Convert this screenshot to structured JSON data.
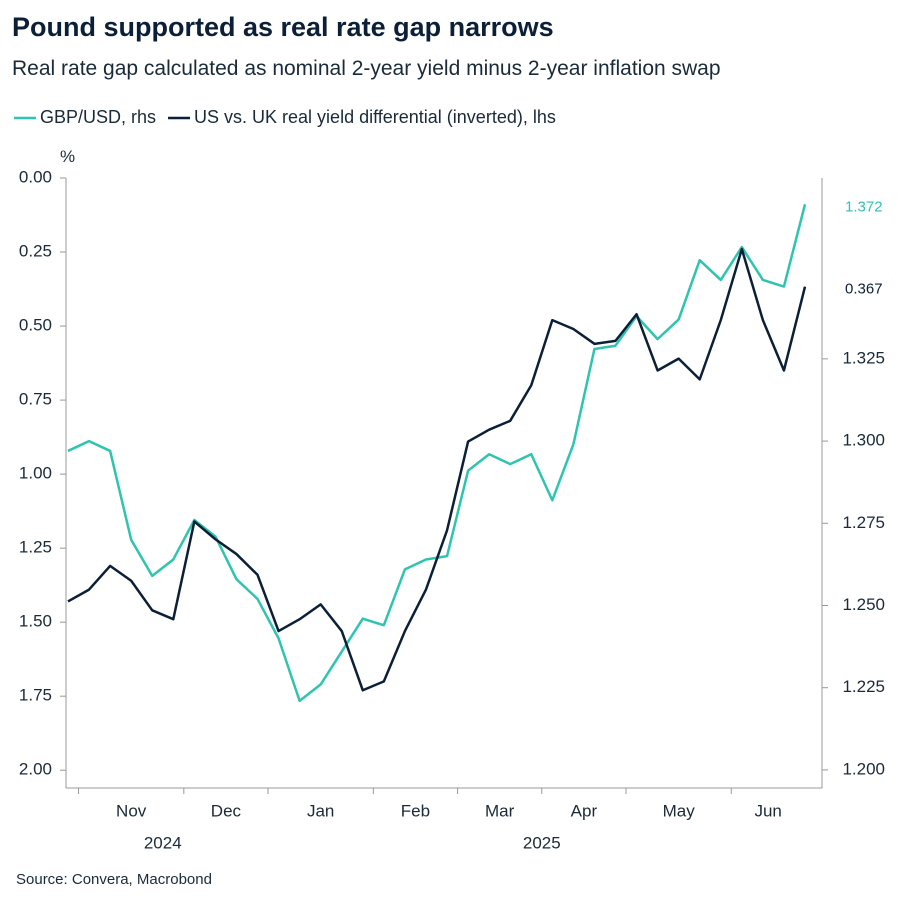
{
  "chart_data": {
    "type": "line",
    "title": "Pound supported as real rate gap narrows",
    "subtitle": "Real rate gap calculated as nominal 2-year yield minus 2-year inflation swap",
    "y_label": "%",
    "source": "Source: Convera, Macrobond",
    "x": [
      "2024-10",
      "2024-11",
      "2024-11",
      "2024-11",
      "2024-11",
      "2024-11",
      "2024-12",
      "2024-12",
      "2024-12",
      "2024-12",
      "2025-01",
      "2025-01",
      "2025-01",
      "2025-01",
      "2025-01",
      "2025-02",
      "2025-02",
      "2025-02",
      "2025-02",
      "2025-03",
      "2025-03",
      "2025-03",
      "2025-03",
      "2025-04",
      "2025-04",
      "2025-04",
      "2025-04",
      "2025-05",
      "2025-05",
      "2025-05",
      "2025-05",
      "2025-05",
      "2025-06",
      "2025-06",
      "2025-06",
      "2025-06"
    ],
    "xticks": [
      {
        "value": "2024-11",
        "label": "Nov"
      },
      {
        "value": "2024-12",
        "label": "Dec"
      },
      {
        "value": "2025-01",
        "label": "Jan"
      },
      {
        "value": "2025-02",
        "label": "Feb"
      },
      {
        "value": "2025-03",
        "label": "Mar"
      },
      {
        "value": "2025-04",
        "label": "Apr"
      },
      {
        "value": "2025-05",
        "label": "May"
      },
      {
        "value": "2025-06",
        "label": "Jun"
      }
    ],
    "years": [
      "2024",
      "2025"
    ],
    "series": [
      {
        "name": "GBP/USD, rhs",
        "color": "#2ec4b0",
        "axis": "y2",
        "values": [
          1.297,
          1.3,
          1.297,
          1.27,
          1.259,
          1.264,
          1.276,
          1.271,
          1.258,
          1.252,
          1.24,
          1.221,
          1.226,
          1.236,
          1.246,
          1.244,
          1.261,
          1.264,
          1.265,
          1.291,
          1.296,
          1.293,
          1.296,
          1.282,
          1.299,
          1.328,
          1.329,
          1.338,
          1.331,
          1.337,
          1.355,
          1.349,
          1.359,
          1.349,
          1.347,
          1.372
        ]
      },
      {
        "name": "US vs. UK real yield differential (inverted), lhs",
        "color": "#0b2038",
        "values": [
          1.43,
          1.39,
          1.31,
          1.36,
          1.46,
          1.49,
          1.16,
          1.22,
          1.27,
          1.34,
          1.53,
          1.49,
          1.44,
          1.53,
          1.73,
          1.7,
          1.53,
          1.39,
          1.19,
          0.89,
          0.85,
          0.82,
          0.7,
          0.48,
          0.51,
          0.56,
          0.55,
          0.46,
          0.65,
          0.61,
          0.68,
          0.48,
          0.24,
          0.48,
          0.65,
          0.367
        ]
      }
    ],
    "ylim": [
      2.06,
      0
    ],
    "yticks": [
      {
        "value": 0,
        "label": "0.00"
      },
      {
        "value": 0.25,
        "label": "0.25"
      },
      {
        "value": 0.5,
        "label": "0.50"
      },
      {
        "value": 0.75,
        "label": "0.75"
      },
      {
        "value": 1,
        "label": "1.00"
      },
      {
        "value": 1.25,
        "label": "1.25"
      },
      {
        "value": 1.5,
        "label": "1.50"
      },
      {
        "value": 1.75,
        "label": "1.75"
      },
      {
        "value": 2,
        "label": "2.00"
      }
    ],
    "y2lim": [
      1.1945,
      1.38
    ],
    "y2ticks": [
      {
        "value": 1.2,
        "label": "1.200"
      },
      1.225,
      {
        "value": 1.25,
        "label": "1.250"
      },
      1.275,
      {
        "value": 1.3,
        "label": "1.300"
      },
      1.325
    ],
    "legend": "top-left"
  }
}
